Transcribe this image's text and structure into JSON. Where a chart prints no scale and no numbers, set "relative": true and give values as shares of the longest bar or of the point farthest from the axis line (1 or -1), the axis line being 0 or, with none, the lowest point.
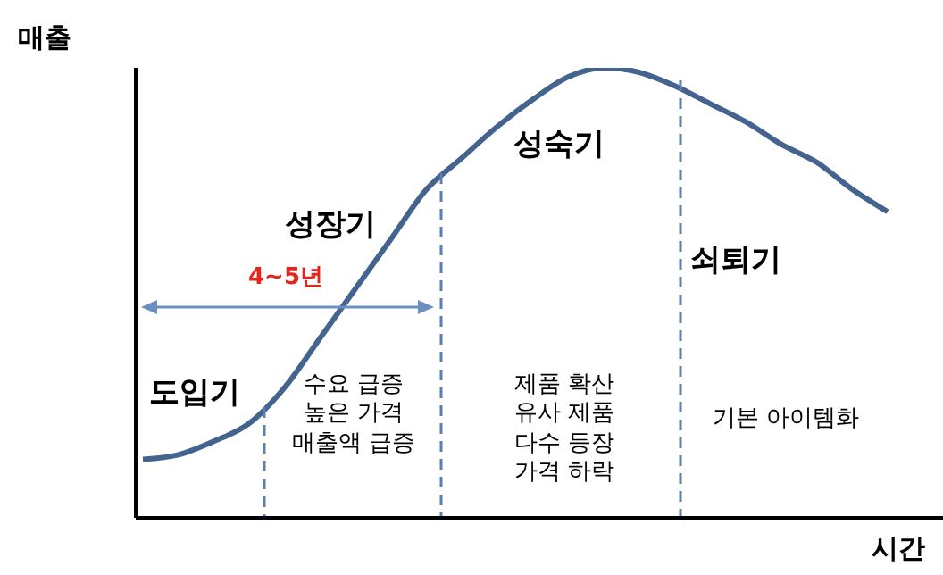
{
  "chart_data": {
    "type": "line",
    "relative": true,
    "ylabel": "매출",
    "xlabel": "시간",
    "categories": [
      null,
      null,
      null,
      null,
      null,
      null,
      null,
      null,
      null,
      null,
      null,
      null,
      null,
      null,
      null,
      null,
      null,
      null,
      null,
      null,
      null,
      null
    ],
    "series": [
      {
        "color": "#44648f",
        "values": [
          0.13,
          0.14,
          0.17,
          0.21,
          0.29,
          0.4,
          0.51,
          0.62,
          0.73,
          0.8,
          0.87,
          0.93,
          0.98,
          1.0,
          0.99,
          0.96,
          0.92,
          0.88,
          0.83,
          0.79,
          0.73,
          0.68
        ]
      }
    ],
    "marker": "none",
    "annotations": [
      "도입기",
      "성장기",
      "성숙기",
      "쇠퇴기",
      "4~5년",
      "수요 급증\n높은 가격\n매출액 급증",
      "제품 확산\n유사 제품\n다수 등장\n가격 하락",
      "기본 아이템화"
    ]
  }
}
